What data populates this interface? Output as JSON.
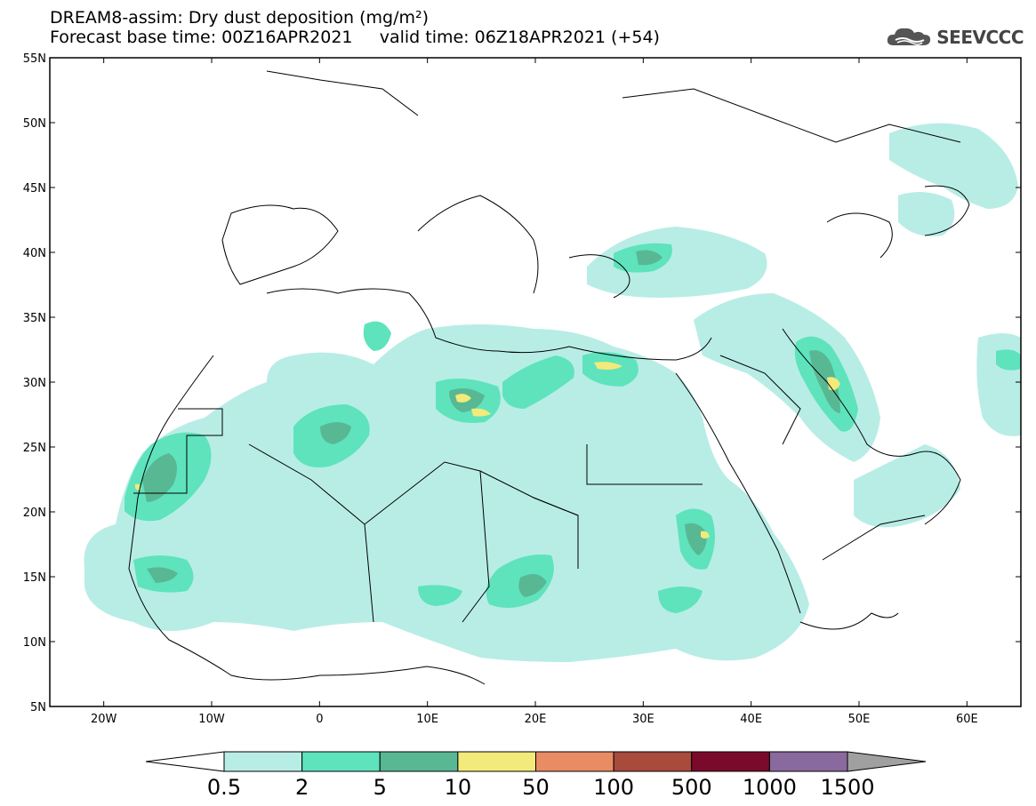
{
  "title": {
    "line1": "DREAM8-assim: Dry dust deposition (mg/m²)",
    "line2": "Forecast base time: 00Z16APR2021     valid time: 06Z18APR2021 (+54)"
  },
  "logo": {
    "text": "SEEVCCC",
    "icon": "cloud-logo-icon"
  },
  "map": {
    "lon_range": [
      -25,
      65
    ],
    "lat_range": [
      5,
      55
    ],
    "lat_ticks": [
      "55N",
      "50N",
      "45N",
      "40N",
      "35N",
      "30N",
      "25N",
      "20N",
      "15N",
      "10N",
      "5N"
    ],
    "lat_values": [
      55,
      50,
      45,
      40,
      35,
      30,
      25,
      20,
      15,
      10,
      5
    ],
    "lon_ticks": [
      "20W",
      "10W",
      "0",
      "10E",
      "20E",
      "30E",
      "40E",
      "50E",
      "60E"
    ],
    "lon_values": [
      -20,
      -10,
      0,
      10,
      20,
      30,
      40,
      50,
      60
    ]
  },
  "colorbar": {
    "labels": [
      "0.5",
      "2",
      "5",
      "10",
      "50",
      "100",
      "500",
      "1000",
      "1500"
    ],
    "colors": [
      "#ffffff",
      "#b8ede6",
      "#5ee3bd",
      "#58b893",
      "#f2ea7a",
      "#ea8c63",
      "#a84a3c",
      "#7a0a2c",
      "#8a6a9e",
      "#a0a0a0"
    ]
  }
}
